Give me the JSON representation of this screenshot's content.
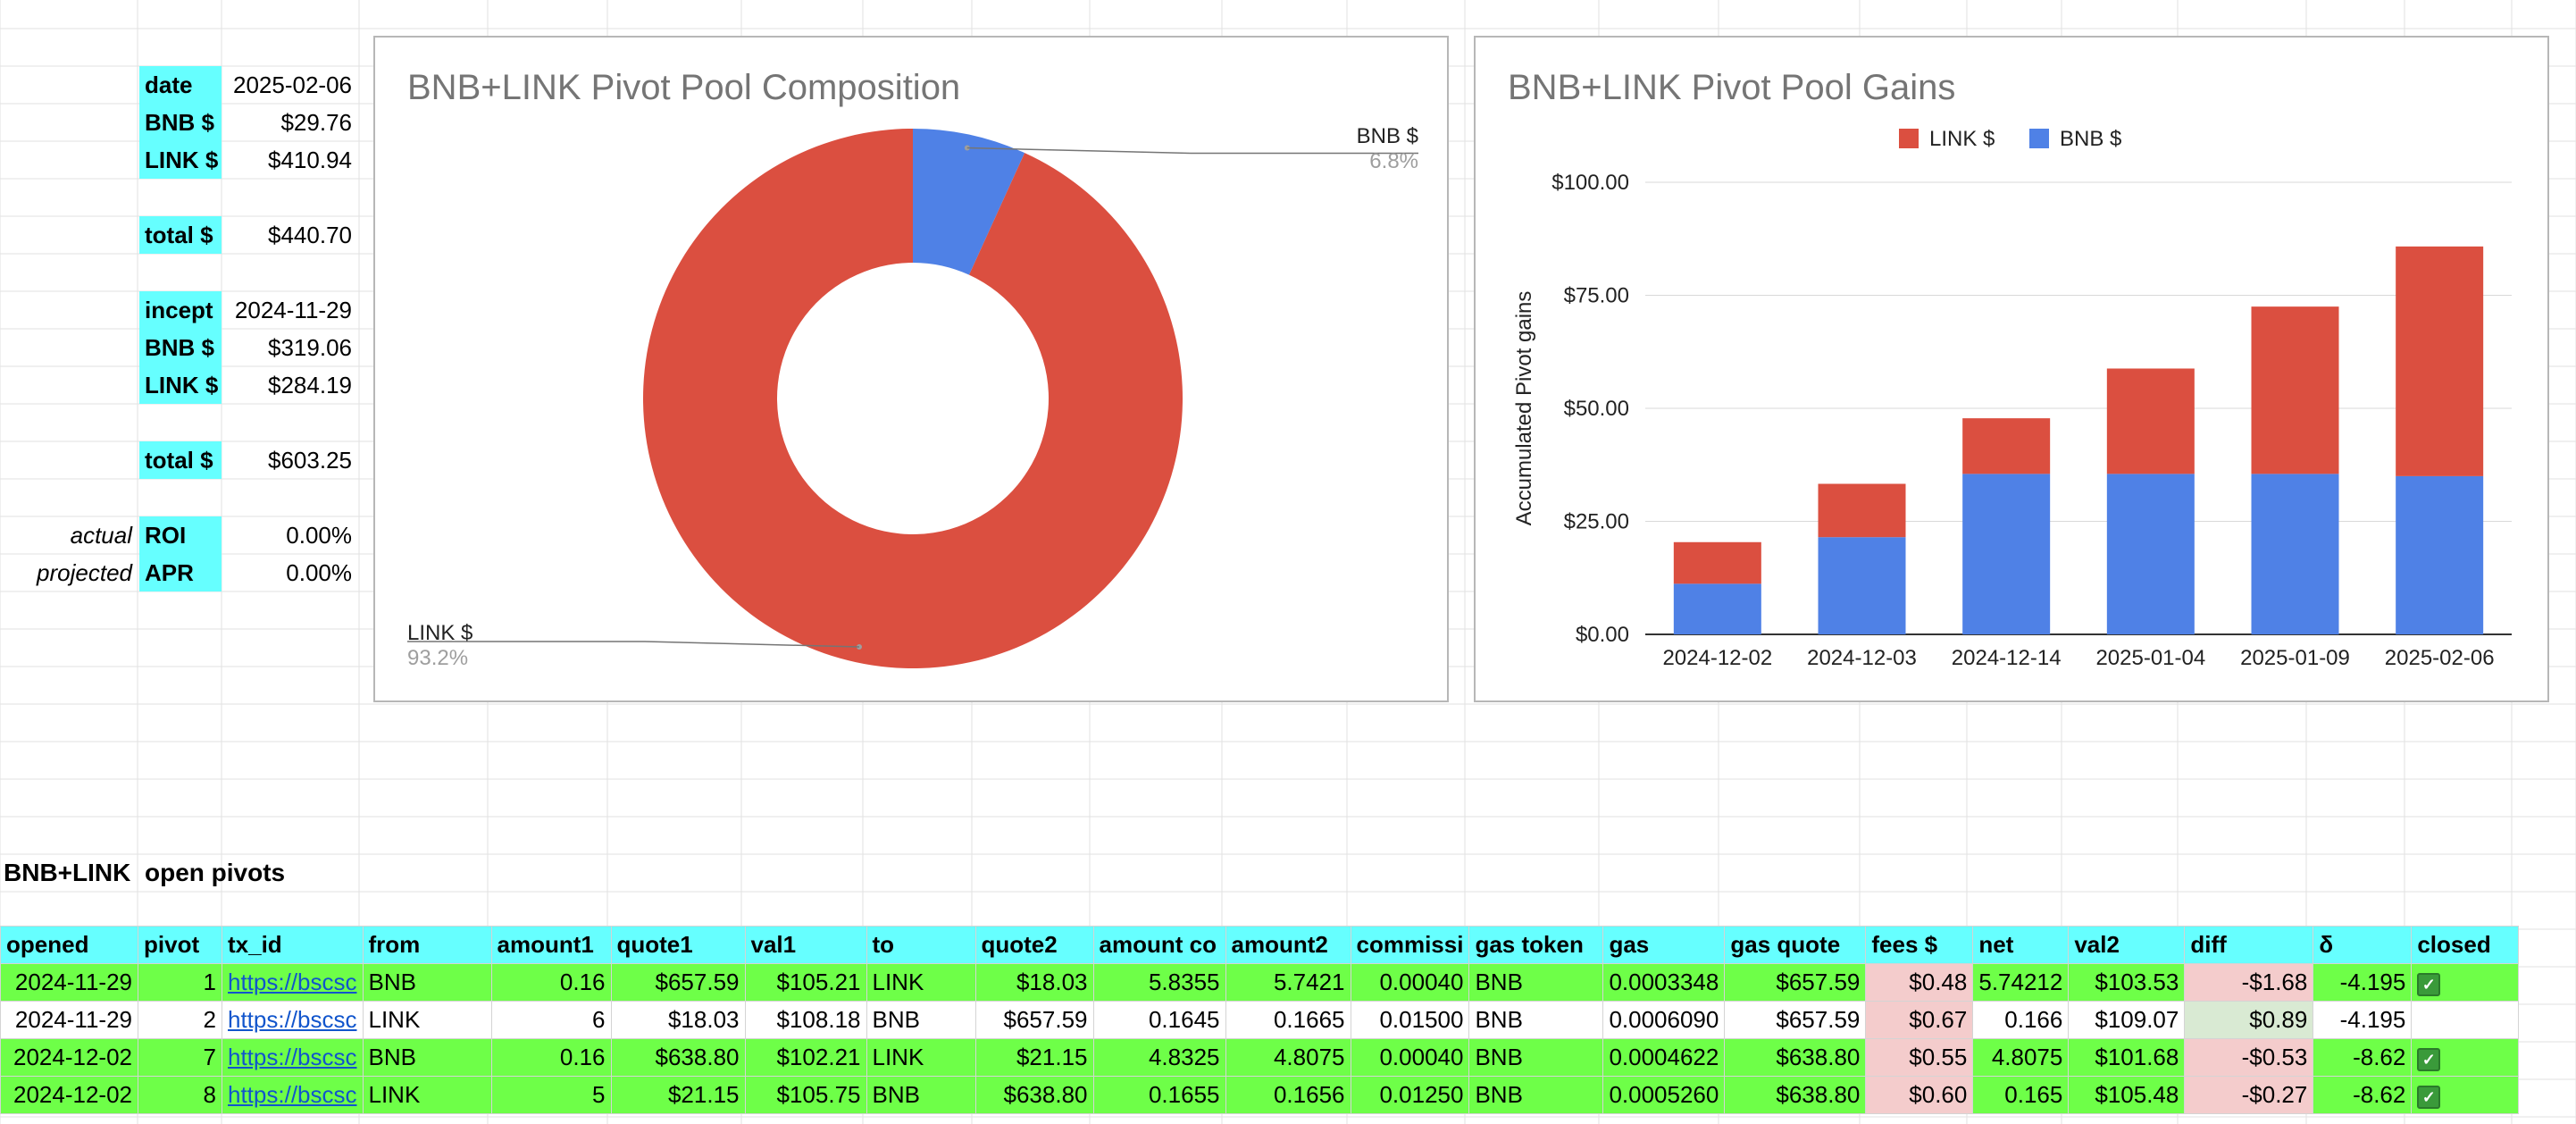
{
  "summary": {
    "date_label": "date",
    "date": "2025-02-06",
    "bnb_label_1": "BNB $",
    "bnb_1": "$29.76",
    "link_label_1": "LINK $",
    "link_1": "$410.94",
    "total_label_1": "total $",
    "total_1": "$440.70",
    "incept_label": "incept",
    "incept": "2024-11-29",
    "bnb_label_2": "BNB $",
    "bnb_2": "$319.06",
    "link_label_2": "LINK $",
    "link_2": "$284.19",
    "total_label_2": "total $",
    "total_2": "$603.25",
    "actual": "actual",
    "roi_label": "ROI",
    "roi": "0.00%",
    "projected": "projected",
    "apr_label": "APR",
    "apr": "0.00%"
  },
  "chart_data": [
    {
      "type": "pie",
      "title": "BNB+LINK Pivot Pool Composition",
      "donut": true,
      "labels": [
        "BNB $",
        "LINK $"
      ],
      "values": [
        6.8,
        93.2
      ],
      "value_labels": [
        "6.8%",
        "93.2%"
      ],
      "colors": [
        "#4f81e6",
        "#db4f40"
      ]
    },
    {
      "type": "bar",
      "stacked": true,
      "title": "BNB+LINK Pivot Pool Gains",
      "ylabel": "Accumulated Pivot gains",
      "xlabel": "",
      "categories": [
        "2024-12-02",
        "2024-12-03",
        "2024-12-14",
        "2025-01-04",
        "2025-01-09",
        "2025-02-06"
      ],
      "series": [
        {
          "name": "BNB $",
          "color": "#4f81e6",
          "values": [
            11.2,
            21.5,
            35.5,
            35.5,
            35.5,
            35.0
          ]
        },
        {
          "name": "LINK $",
          "color": "#db4f40",
          "values": [
            9.2,
            11.8,
            12.3,
            23.3,
            37.0,
            50.8
          ]
        }
      ],
      "legend": [
        "LINK $",
        "BNB $"
      ],
      "legend_position": "top",
      "yticks": [
        "$0.00",
        "$25.00",
        "$50.00",
        "$75.00",
        "$100.00"
      ],
      "ylim": [
        0,
        100
      ],
      "grid": true
    }
  ],
  "pivots": {
    "pair": "BNB+LINK",
    "section": "open pivots",
    "columns": [
      "opened",
      "pivot",
      "tx_id",
      "from",
      "amount1",
      "quote1",
      "val1",
      "to",
      "quote2",
      "amount co",
      "amount2",
      "commissi",
      "gas token",
      "gas",
      "gas quote",
      "fees $",
      "net",
      "val2",
      "diff",
      "δ",
      "closed"
    ],
    "rows": [
      {
        "style": "green",
        "cells": [
          "2024-11-29",
          "1",
          "https://bscsc",
          "BNB",
          "0.16",
          "$657.59",
          "$105.21",
          "LINK",
          "$18.03",
          "5.8355",
          "5.7421",
          "0.00040",
          "BNB",
          "0.0003348",
          "$657.59",
          "$0.48",
          "5.74212",
          "$103.53",
          "-$1.68",
          "-4.195",
          "✓"
        ]
      },
      {
        "style": "white",
        "cells": [
          "2024-11-29",
          "2",
          "https://bscsc",
          "LINK",
          "6",
          "$18.03",
          "$108.18",
          "BNB",
          "$657.59",
          "0.1645",
          "0.1665",
          "0.01500",
          "BNB",
          "0.0006090",
          "$657.59",
          "$0.67",
          "0.166",
          "$109.07",
          "$0.89",
          "-4.195",
          ""
        ]
      },
      {
        "style": "green",
        "cells": [
          "2024-12-02",
          "7",
          "https://bscsc",
          "BNB",
          "0.16",
          "$638.80",
          "$102.21",
          "LINK",
          "$21.15",
          "4.8325",
          "4.8075",
          "0.00040",
          "BNB",
          "0.0004622",
          "$638.80",
          "$0.55",
          "4.8075",
          "$101.68",
          "-$0.53",
          "-8.62",
          "✓"
        ]
      },
      {
        "style": "green",
        "cells": [
          "2024-12-02",
          "8",
          "https://bscsc",
          "LINK",
          "5",
          "$21.15",
          "$105.75",
          "BNB",
          "$638.80",
          "0.1655",
          "0.1656",
          "0.01250",
          "BNB",
          "0.0005260",
          "$638.80",
          "$0.60",
          "0.165",
          "$105.48",
          "-$0.27",
          "-8.62",
          "✓"
        ]
      }
    ]
  }
}
